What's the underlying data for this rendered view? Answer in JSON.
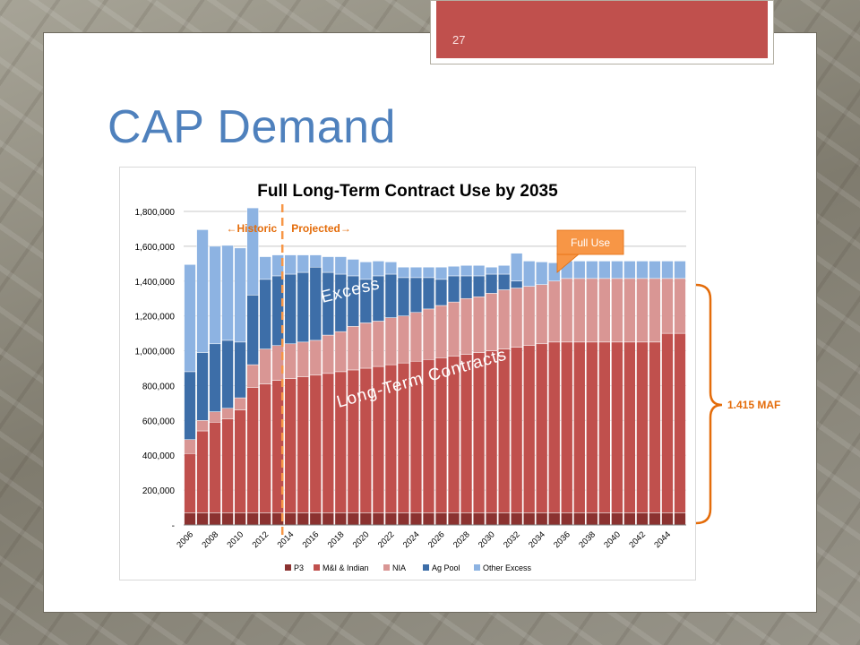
{
  "slide": {
    "number": "27",
    "title": "CAP Demand"
  },
  "chart_data": {
    "type": "bar",
    "stacked": true,
    "title": "Full Long-Term Contract Use by 2035",
    "xlabel": "",
    "ylabel": "",
    "ylim": [
      0,
      1800000
    ],
    "y_ticks": [
      "1,800,000",
      "1,600,000",
      "1,400,000",
      "1,200,000",
      "1,000,000",
      "800,000",
      "600,000",
      "400,000",
      "200,000",
      "-"
    ],
    "y_tick_values": [
      1800000,
      1600000,
      1400000,
      1200000,
      1000000,
      800000,
      600000,
      400000,
      200000,
      0
    ],
    "x_tick_labels": [
      "2006",
      "2008",
      "2010",
      "2012",
      "2014",
      "2016",
      "2018",
      "2020",
      "2022",
      "2024",
      "2026",
      "2028",
      "2030",
      "2032",
      "2034",
      "2036",
      "2038",
      "2040",
      "2042",
      "2044"
    ],
    "categories": [
      "2006",
      "2007",
      "2008",
      "2009",
      "2010",
      "2011",
      "2012",
      "2013",
      "2014",
      "2015",
      "2016",
      "2017",
      "2018",
      "2019",
      "2020",
      "2021",
      "2022",
      "2023",
      "2024",
      "2025",
      "2026",
      "2027",
      "2028",
      "2029",
      "2030",
      "2031",
      "2032",
      "2033",
      "2034",
      "2035",
      "2036",
      "2037",
      "2038",
      "2039",
      "2040",
      "2041",
      "2042",
      "2043",
      "2044",
      "2045"
    ],
    "grid": true,
    "legend_position": "bottom",
    "colors": [
      "#8b3230",
      "#c0504d",
      "#d99694",
      "#3d6ea8",
      "#8db3e2"
    ],
    "series": [
      {
        "name": "P3",
        "values": [
          70000,
          70000,
          70000,
          70000,
          70000,
          70000,
          70000,
          70000,
          70000,
          70000,
          70000,
          70000,
          70000,
          70000,
          70000,
          70000,
          70000,
          70000,
          70000,
          70000,
          70000,
          70000,
          70000,
          70000,
          70000,
          70000,
          70000,
          70000,
          70000,
          70000,
          70000,
          70000,
          70000,
          70000,
          70000,
          70000,
          70000,
          70000,
          70000,
          70000
        ]
      },
      {
        "name": "M&I & Indian",
        "values": [
          340000,
          470000,
          520000,
          540000,
          590000,
          720000,
          740000,
          760000,
          770000,
          780000,
          790000,
          800000,
          810000,
          820000,
          830000,
          840000,
          850000,
          860000,
          870000,
          880000,
          890000,
          900000,
          910000,
          920000,
          930000,
          940000,
          950000,
          960000,
          970000,
          980000,
          980000,
          980000,
          980000,
          980000,
          980000,
          980000,
          980000,
          980000,
          1030000,
          1030000
        ]
      },
      {
        "name": "NIA",
        "values": [
          80000,
          60000,
          60000,
          60000,
          70000,
          130000,
          200000,
          200000,
          200000,
          200000,
          200000,
          220000,
          230000,
          250000,
          260000,
          260000,
          270000,
          270000,
          280000,
          290000,
          300000,
          310000,
          320000,
          320000,
          330000,
          340000,
          340000,
          340000,
          340000,
          350000,
          365000,
          365000,
          365000,
          365000,
          365000,
          365000,
          365000,
          365000,
          315000,
          315000
        ]
      },
      {
        "name": "Ag Pool",
        "values": [
          390000,
          390000,
          390000,
          390000,
          320000,
          400000,
          400000,
          400000,
          400000,
          400000,
          420000,
          360000,
          330000,
          290000,
          250000,
          260000,
          250000,
          220000,
          200000,
          180000,
          150000,
          150000,
          130000,
          120000,
          110000,
          90000,
          40000,
          0,
          0,
          0,
          0,
          0,
          0,
          0,
          0,
          0,
          0,
          0,
          0,
          0
        ]
      },
      {
        "name": "Other Excess",
        "values": [
          615000,
          705000,
          560000,
          545000,
          540000,
          500000,
          130000,
          120000,
          110000,
          100000,
          70000,
          90000,
          100000,
          95000,
          100000,
          85000,
          70000,
          60000,
          60000,
          60000,
          70000,
          55000,
          60000,
          60000,
          40000,
          50000,
          160000,
          145000,
          130000,
          105000,
          100000,
          100000,
          100000,
          100000,
          100000,
          100000,
          100000,
          100000,
          100000,
          100000
        ]
      }
    ],
    "annotations": {
      "historic": "←Historic",
      "projected": "Projected→",
      "full_use": "Full Use",
      "excess": "Excess",
      "long_term": "Long-Term Contracts",
      "maf": "1.415 MAF"
    },
    "divider_after_category": "2013"
  }
}
